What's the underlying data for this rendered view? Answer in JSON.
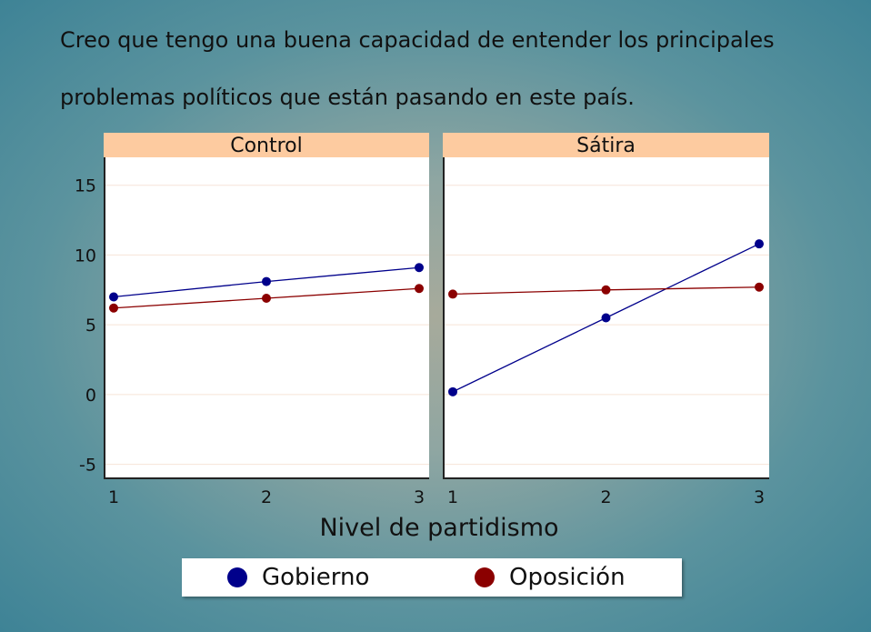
{
  "title": {
    "line1": "Creo que tengo una buena capacidad de entender los principales",
    "line2": "problemas políticos que están pasando en este país."
  },
  "xlabel": "Nivel de partidismo",
  "legend": [
    {
      "name": "Gobierno",
      "color": "#00008b"
    },
    {
      "name": "Oposición",
      "color": "#8b0000"
    }
  ],
  "colors": {
    "strip": "#fdcba0",
    "panel": "#ffffff",
    "grid": "#f7e4d8"
  },
  "chart_data": {
    "type": "line",
    "ylim": [
      -6,
      17
    ],
    "y_ticks": [
      "-5",
      "0",
      "5",
      "10",
      "15"
    ],
    "x_ticks": [
      "1",
      "2",
      "3"
    ],
    "panels": [
      {
        "title": "Control",
        "series": [
          {
            "name": "Gobierno",
            "x": [
              1,
              2,
              3
            ],
            "y": [
              7.0,
              8.1,
              9.1
            ]
          },
          {
            "name": "Oposición",
            "x": [
              1,
              2,
              3
            ],
            "y": [
              6.2,
              6.9,
              7.6
            ]
          }
        ]
      },
      {
        "title": "Sátira",
        "series": [
          {
            "name": "Gobierno",
            "x": [
              1,
              2,
              3
            ],
            "y": [
              0.2,
              5.5,
              10.8
            ]
          },
          {
            "name": "Oposición",
            "x": [
              1,
              2,
              3
            ],
            "y": [
              7.2,
              7.5,
              7.7
            ]
          }
        ]
      }
    ]
  }
}
